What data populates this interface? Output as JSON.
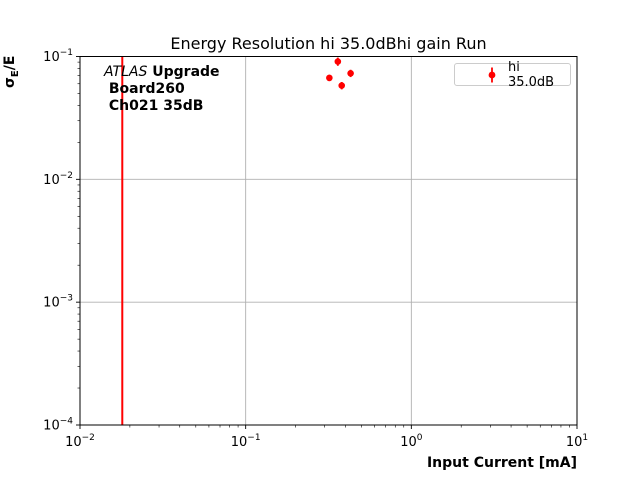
{
  "title": "Energy Resolution hi 35.0dBhi gain Run",
  "x_axis": {
    "label": "Input Current [mA]"
  },
  "y_axis": {
    "sigma": "σ",
    "sub": "E",
    "rest": "/E"
  },
  "annotation": {
    "atlas": "ATLAS",
    "upgrade": " Upgrade",
    "line2": " Board260",
    "line3": " Ch021 35dB"
  },
  "legend": {
    "label": "hi 35.0dB"
  },
  "colors": {
    "accent_red": "#ff0000",
    "grid": "#b0b0b0",
    "spine": "#000000",
    "legend_border": "#cccccc"
  },
  "chart_data": {
    "type": "scatter",
    "title": "Energy Resolution hi 35.0dBhi gain Run",
    "xlabel": "Input Current [mA]",
    "ylabel": "sigma_E/E",
    "x_scale": "log",
    "y_scale": "log",
    "xlim": [
      0.01,
      10
    ],
    "ylim": [
      0.0001,
      0.1
    ],
    "x_tick_exponents": [
      -2,
      -1,
      0,
      1
    ],
    "y_tick_exponents": [
      -1,
      -2,
      -3,
      -4
    ],
    "grid": "major",
    "legend_position": "upper right",
    "vline_x": 0.018,
    "vline_color": "#ff0000",
    "series": [
      {
        "name": "hi 35.0dB",
        "color": "#ff0000",
        "points": [
          {
            "x": 0.36,
            "y": 0.091,
            "yerr": 0.007
          },
          {
            "x": 0.43,
            "y": 0.073,
            "yerr": 0.005
          },
          {
            "x": 0.32,
            "y": 0.067,
            "yerr": 0.004
          },
          {
            "x": 0.38,
            "y": 0.058,
            "yerr": 0.004
          }
        ]
      }
    ]
  }
}
